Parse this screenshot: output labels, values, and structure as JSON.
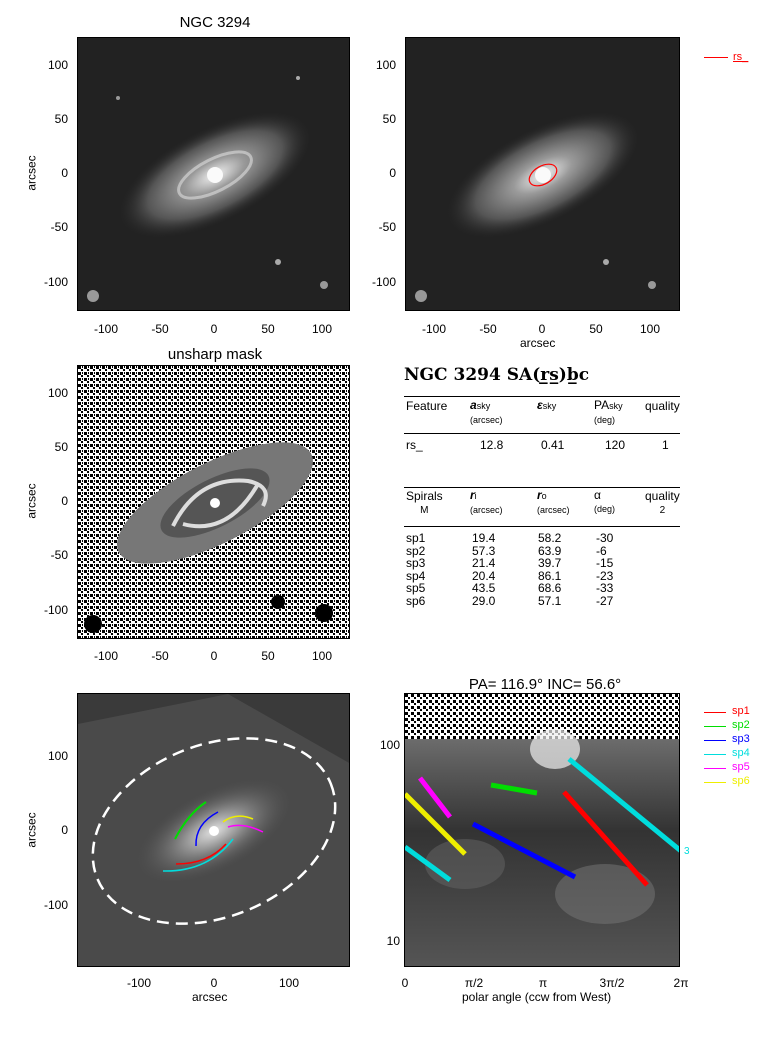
{
  "panel1": {
    "title": "NGC 3294",
    "yticks": [
      "100",
      "50",
      "0",
      "-50",
      "-100"
    ],
    "xticks": [
      "-100",
      "-50",
      "0",
      "50",
      "100"
    ],
    "ylabel": "arcsec"
  },
  "panel2": {
    "yticks": [
      "100",
      "50",
      "0",
      "-50",
      "-100"
    ],
    "xticks": [
      "-100",
      "-50",
      "0",
      "50",
      "100"
    ],
    "xlabel": "arcsec",
    "legend": [
      {
        "label": "rs_",
        "color": "#ff0000"
      }
    ]
  },
  "panel3": {
    "title": "unsharp mask",
    "yticks": [
      "100",
      "50",
      "0",
      "-50",
      "-100"
    ],
    "xticks": [
      "-100",
      "-50",
      "0",
      "50",
      "100"
    ],
    "ylabel": "arcsec"
  },
  "table": {
    "title": "NGC 3294  SA(r̲s̲)b̲c",
    "feature_headers": {
      "c1": "Feature",
      "c2_main": "a",
      "c2_sub": "sky",
      "c2_unit": "(arcsec)",
      "c3_main": "ε",
      "c3_sub": "sky",
      "c4_main": "PA",
      "c4_sub": "sky",
      "c4_unit": "(deg)",
      "c5": "quality"
    },
    "feature_rows": [
      {
        "name": "rs_",
        "a": "12.8",
        "e": "0.41",
        "pa": "120",
        "q": "1"
      }
    ],
    "spiral_headers": {
      "c1": "Spirals",
      "c1_sub": "M",
      "c2_main": "r",
      "c2_sub": "i",
      "c2_unit": "(arcsec)",
      "c3_main": "r",
      "c3_sub": "o",
      "c3_unit": "(arcsec)",
      "c4_main": "α",
      "c4_unit": "(deg)",
      "c5": "quality",
      "c5_sub": "2"
    },
    "spiral_rows": [
      {
        "name": "sp1",
        "ri": "19.4",
        "ro": "58.2",
        "alpha": "-30"
      },
      {
        "name": "sp2",
        "ri": "57.3",
        "ro": "63.9",
        "alpha": "-6"
      },
      {
        "name": "sp3",
        "ri": "21.4",
        "ro": "39.7",
        "alpha": "-15"
      },
      {
        "name": "sp4",
        "ri": "20.4",
        "ro": "86.1",
        "alpha": "-23"
      },
      {
        "name": "sp5",
        "ri": "43.5",
        "ro": "68.6",
        "alpha": "-33"
      },
      {
        "name": "sp6",
        "ri": "29.0",
        "ro": "57.1",
        "alpha": "-27"
      }
    ]
  },
  "panel5": {
    "yticks": [
      "100",
      "0",
      "-100"
    ],
    "xticks": [
      "-100",
      "0",
      "100"
    ],
    "ylabel": "arcsec",
    "xlabel": "arcsec"
  },
  "panel6": {
    "title": "PA= 116.9°  INC=  56.6°",
    "yticks": [
      "100",
      "10"
    ],
    "xticks": [
      "0",
      "π/2",
      "π",
      "3π/2",
      "2π"
    ],
    "xlabel": "polar angle (ccw from West)",
    "edge_label": "3",
    "legend": [
      {
        "label": "sp1",
        "color": "#ff0000"
      },
      {
        "label": "sp2",
        "color": "#00dd00"
      },
      {
        "label": "sp3",
        "color": "#0000ff"
      },
      {
        "label": "sp4",
        "color": "#00dddd"
      },
      {
        "label": "sp5",
        "color": "#ff00ff"
      },
      {
        "label": "sp6",
        "color": "#eeee00"
      }
    ]
  }
}
